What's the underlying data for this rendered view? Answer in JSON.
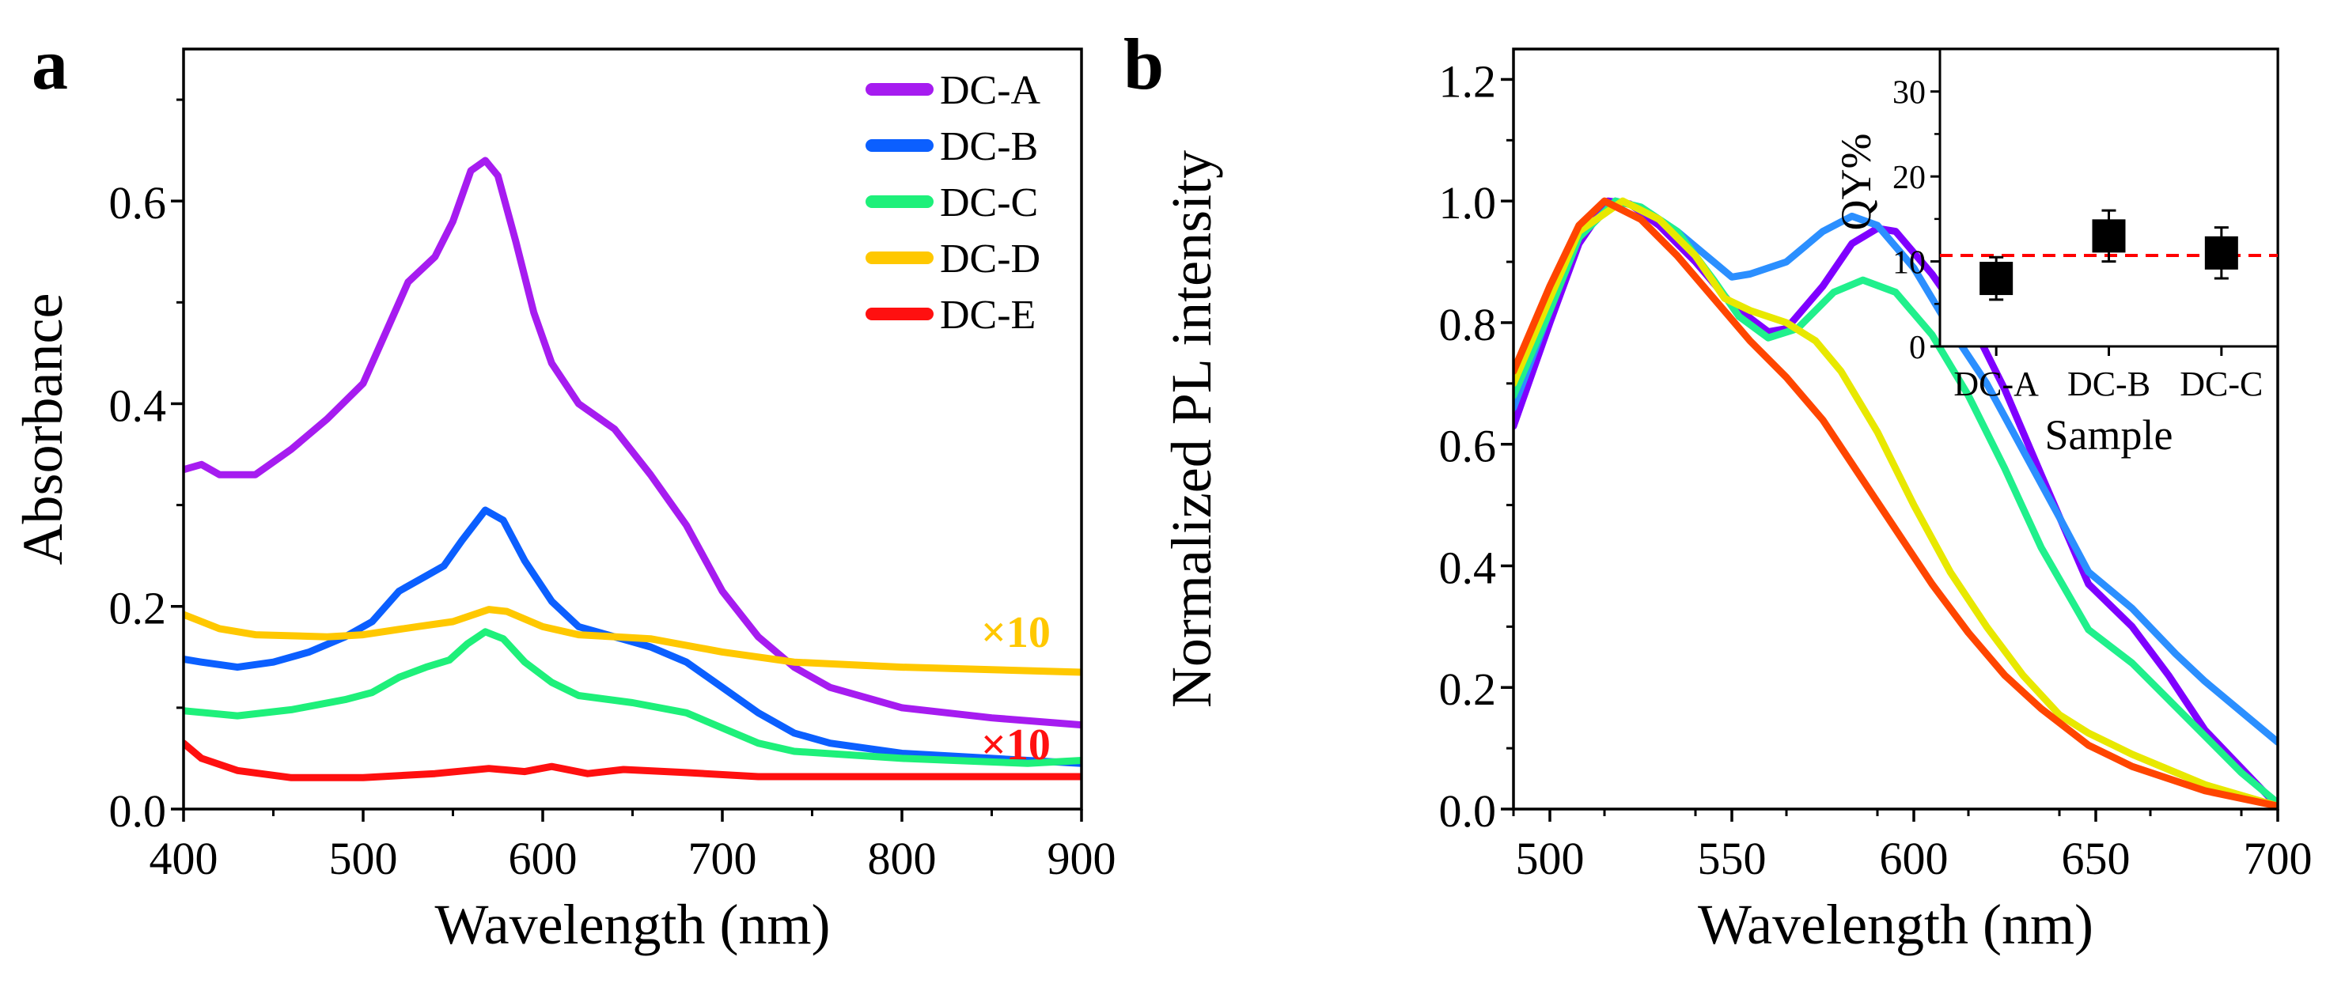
{
  "panel_labels": [
    "a",
    "b"
  ],
  "chart_data": [
    {
      "type": "line",
      "panel": "a",
      "xlabel": "Wavelength (nm)",
      "ylabel": "Absorbance",
      "xlim": [
        400,
        900
      ],
      "ylim": [
        0,
        0.75
      ],
      "xticks": [
        400,
        500,
        600,
        700,
        800,
        900
      ],
      "yticks": [
        0.0,
        0.2,
        0.4,
        0.6
      ],
      "ytick_labels": [
        "0.0",
        "0.2",
        "0.4",
        "0.6"
      ],
      "grid": false,
      "legend": "top-right",
      "annotations": [
        {
          "text": "×10",
          "color": "#FFC800",
          "x": 870,
          "y": 0.175
        },
        {
          "text": "×10",
          "color": "#FF1010",
          "x": 870,
          "y": 0.068
        }
      ],
      "series": [
        {
          "name": "DC-A",
          "color": "#A61CF0",
          "x": [
            400,
            410,
            420,
            440,
            460,
            480,
            500,
            515,
            525,
            540,
            550,
            560,
            568,
            575,
            585,
            595,
            605,
            620,
            640,
            660,
            680,
            700,
            720,
            740,
            760,
            800,
            850,
            900
          ],
          "y": [
            0.335,
            0.34,
            0.33,
            0.33,
            0.355,
            0.385,
            0.42,
            0.48,
            0.52,
            0.545,
            0.58,
            0.63,
            0.64,
            0.625,
            0.56,
            0.49,
            0.44,
            0.4,
            0.375,
            0.33,
            0.28,
            0.215,
            0.17,
            0.14,
            0.12,
            0.1,
            0.09,
            0.083
          ]
        },
        {
          "name": "DC-B",
          "color": "#0B5FFF",
          "x": [
            400,
            410,
            430,
            450,
            470,
            490,
            505,
            520,
            535,
            545,
            555,
            568,
            578,
            590,
            605,
            620,
            640,
            660,
            680,
            700,
            720,
            740,
            760,
            800,
            850,
            900
          ],
          "y": [
            0.148,
            0.145,
            0.14,
            0.145,
            0.155,
            0.17,
            0.185,
            0.215,
            0.23,
            0.24,
            0.265,
            0.295,
            0.285,
            0.245,
            0.205,
            0.18,
            0.17,
            0.16,
            0.145,
            0.12,
            0.095,
            0.075,
            0.065,
            0.055,
            0.05,
            0.045
          ]
        },
        {
          "name": "DC-C",
          "color": "#1EF07A",
          "x": [
            400,
            430,
            460,
            490,
            505,
            520,
            535,
            548,
            558,
            568,
            578,
            590,
            605,
            620,
            650,
            680,
            700,
            720,
            740,
            800,
            870,
            900
          ],
          "y": [
            0.097,
            0.092,
            0.098,
            0.108,
            0.115,
            0.13,
            0.14,
            0.147,
            0.163,
            0.175,
            0.168,
            0.145,
            0.125,
            0.112,
            0.105,
            0.095,
            0.08,
            0.065,
            0.057,
            0.05,
            0.045,
            0.048
          ]
        },
        {
          "name": "DC-D",
          "color": "#FFC800",
          "x": [
            400,
            420,
            440,
            480,
            500,
            530,
            550,
            570,
            580,
            600,
            620,
            660,
            700,
            740,
            800,
            900
          ],
          "y": [
            0.192,
            0.178,
            0.172,
            0.17,
            0.172,
            0.18,
            0.185,
            0.197,
            0.195,
            0.18,
            0.172,
            0.168,
            0.155,
            0.145,
            0.14,
            0.135
          ]
        },
        {
          "name": "DC-E",
          "color": "#FF1010",
          "x": [
            400,
            410,
            430,
            460,
            500,
            540,
            570,
            590,
            605,
            625,
            645,
            680,
            720,
            800,
            900
          ],
          "y": [
            0.065,
            0.05,
            0.038,
            0.031,
            0.031,
            0.035,
            0.04,
            0.037,
            0.042,
            0.035,
            0.039,
            0.036,
            0.032,
            0.032,
            0.032
          ]
        }
      ]
    },
    {
      "type": "line",
      "panel": "b",
      "xlabel": "Wavelength (nm)",
      "ylabel": "Normalized PL intensity",
      "xlim": [
        490,
        700
      ],
      "ylim": [
        0,
        1.25
      ],
      "xticks": [
        500,
        550,
        600,
        650,
        700
      ],
      "yticks": [
        0.0,
        0.2,
        0.4,
        0.6,
        0.8,
        1.0,
        1.2
      ],
      "ytick_labels": [
        "0.0",
        "0.2",
        "0.4",
        "0.6",
        "0.8",
        "1.0",
        "1.2"
      ],
      "grid": false,
      "series": [
        {
          "color": "#7F00FF",
          "x": [
            490,
            500,
            508,
            516,
            522,
            530,
            540,
            550,
            560,
            565,
            575,
            583,
            590,
            595,
            605,
            612,
            615,
            625,
            635,
            648,
            660,
            670,
            680,
            700
          ],
          "y": [
            0.63,
            0.8,
            0.93,
            1.0,
            0.995,
            0.96,
            0.9,
            0.83,
            0.785,
            0.79,
            0.86,
            0.93,
            0.955,
            0.95,
            0.88,
            0.82,
            0.81,
            0.69,
            0.55,
            0.37,
            0.3,
            0.22,
            0.13,
            0.005
          ]
        },
        {
          "color": "#2B8FFF",
          "x": [
            490,
            500,
            508,
            518,
            525,
            535,
            545,
            550,
            555,
            565,
            575,
            583,
            590,
            600,
            610,
            620,
            630,
            640,
            648,
            660,
            672,
            680,
            690,
            700
          ],
          "y": [
            0.66,
            0.82,
            0.94,
            1.0,
            0.99,
            0.95,
            0.9,
            0.875,
            0.88,
            0.9,
            0.95,
            0.975,
            0.96,
            0.89,
            0.79,
            0.7,
            0.59,
            0.48,
            0.39,
            0.33,
            0.255,
            0.21,
            0.16,
            0.11
          ]
        },
        {
          "color": "#20F08C",
          "x": [
            490,
            500,
            508,
            518,
            525,
            535,
            545,
            552,
            560,
            568,
            578,
            586,
            595,
            605,
            615,
            625,
            635,
            648,
            660,
            670,
            680,
            690,
            700
          ],
          "y": [
            0.68,
            0.82,
            0.94,
            1.0,
            0.99,
            0.95,
            0.87,
            0.81,
            0.775,
            0.79,
            0.85,
            0.87,
            0.85,
            0.78,
            0.68,
            0.56,
            0.43,
            0.295,
            0.24,
            0.18,
            0.12,
            0.06,
            0.01
          ]
        },
        {
          "color": "#E8E800",
          "x": [
            490,
            500,
            508,
            520,
            530,
            540,
            548,
            555,
            565,
            573,
            580,
            590,
            600,
            610,
            620,
            630,
            640,
            648,
            660,
            680,
            700
          ],
          "y": [
            0.7,
            0.84,
            0.95,
            1.0,
            0.97,
            0.91,
            0.84,
            0.82,
            0.8,
            0.77,
            0.72,
            0.62,
            0.5,
            0.39,
            0.3,
            0.22,
            0.155,
            0.125,
            0.09,
            0.04,
            0.005
          ]
        },
        {
          "color": "#FF4500",
          "x": [
            490,
            500,
            508,
            515,
            525,
            535,
            545,
            555,
            565,
            575,
            585,
            595,
            605,
            615,
            625,
            635,
            648,
            660,
            680,
            700
          ],
          "y": [
            0.72,
            0.86,
            0.96,
            1.0,
            0.97,
            0.91,
            0.84,
            0.77,
            0.71,
            0.64,
            0.55,
            0.46,
            0.37,
            0.29,
            0.22,
            0.165,
            0.105,
            0.07,
            0.03,
            0.005
          ]
        }
      ]
    },
    {
      "type": "scatter",
      "panel": "b-inset",
      "xlabel": "Sample",
      "ylabel": "QY%",
      "categories": [
        "DC-A",
        "DC-B",
        "DC-C"
      ],
      "values": [
        8,
        13,
        11
      ],
      "errors": [
        2.5,
        3,
        3
      ],
      "ylim": [
        0,
        35
      ],
      "yticks": [
        0,
        10,
        20,
        30
      ],
      "reference_line": {
        "y": 10.7,
        "color": "#FF0000",
        "style": "dashed"
      },
      "marker_color": "#000000"
    }
  ]
}
